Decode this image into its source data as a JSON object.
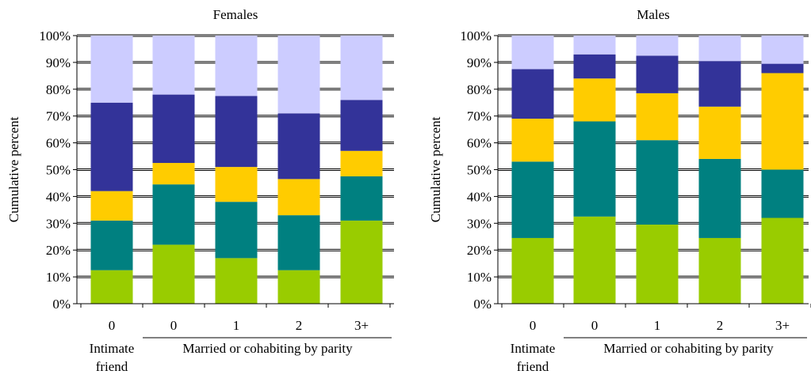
{
  "chart_data": [
    {
      "type": "bar",
      "stacked": true,
      "title": "Females",
      "ylabel": "Cumulative percent",
      "ylim": [
        0,
        100
      ],
      "yticks": [
        "0%",
        "10%",
        "20%",
        "30%",
        "40%",
        "50%",
        "60%",
        "70%",
        "80%",
        "90%",
        "100%"
      ],
      "categories": [
        "0",
        "0",
        "1",
        "2",
        "3+"
      ],
      "group_labels": [
        "Intimate friend",
        "Married or cohabiting by parity"
      ],
      "group_label_lines": [
        [
          "Intimate",
          "friend"
        ],
        [
          "Married or cohabiting by parity"
        ]
      ],
      "grid": true,
      "series": [
        {
          "color": "#99CC00",
          "values": [
            12.5,
            22,
            17,
            12.5,
            31
          ]
        },
        {
          "color": "#008080",
          "values": [
            18.5,
            22.5,
            21,
            20.5,
            16.5
          ]
        },
        {
          "color": "#FFCC00",
          "values": [
            11,
            8,
            13,
            13.5,
            9.5
          ]
        },
        {
          "color": "#333399",
          "values": [
            33,
            25.5,
            26.5,
            24.5,
            19
          ]
        },
        {
          "color": "#CCCCFF",
          "values": [
            25,
            22,
            22.5,
            29,
            24
          ]
        }
      ]
    },
    {
      "type": "bar",
      "stacked": true,
      "title": "Males",
      "ylabel": "Cumulative percent",
      "ylim": [
        0,
        100
      ],
      "yticks": [
        "0%",
        "10%",
        "20%",
        "30%",
        "40%",
        "50%",
        "60%",
        "70%",
        "80%",
        "90%",
        "100%"
      ],
      "categories": [
        "0",
        "0",
        "1",
        "2",
        "3+"
      ],
      "group_labels": [
        "Intimate friend",
        "Married or cohabiting by parity"
      ],
      "group_label_lines": [
        [
          "Intimate",
          "friend"
        ],
        [
          "Married or cohabiting by parity"
        ]
      ],
      "grid": true,
      "series": [
        {
          "color": "#99CC00",
          "values": [
            24.5,
            32.5,
            29.5,
            24.5,
            32
          ]
        },
        {
          "color": "#008080",
          "values": [
            28.5,
            35.5,
            31.5,
            29.5,
            18
          ]
        },
        {
          "color": "#FFCC00",
          "values": [
            16,
            16,
            17.5,
            19.5,
            36
          ]
        },
        {
          "color": "#333399",
          "values": [
            18.5,
            9,
            14,
            17,
            3.5
          ]
        },
        {
          "color": "#CCCCFF",
          "values": [
            12.5,
            7,
            7.5,
            9.5,
            10.5
          ]
        }
      ]
    }
  ]
}
